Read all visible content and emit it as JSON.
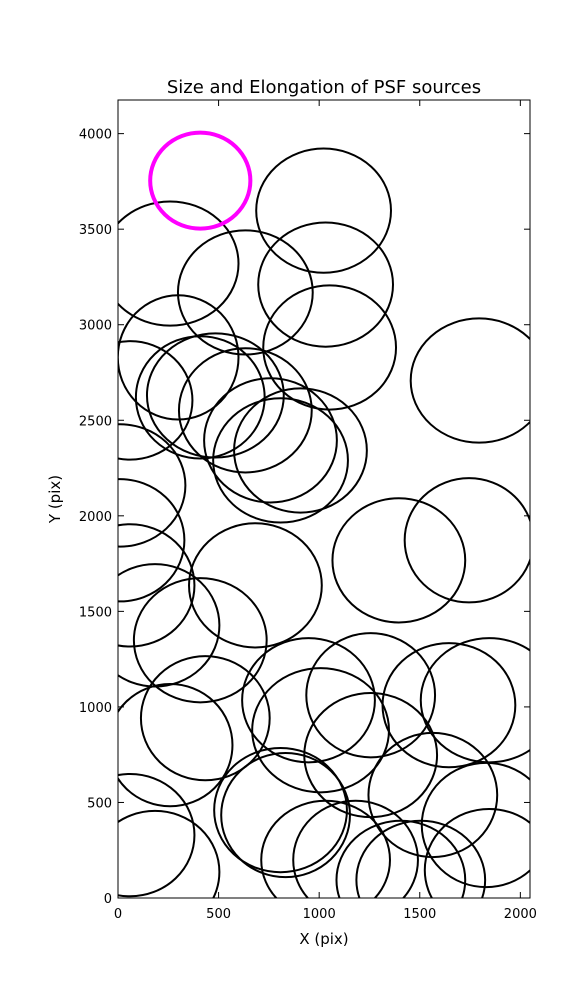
{
  "chart_data": {
    "type": "ellipse",
    "title": "Size and Elongation of PSF sources",
    "xlabel": "X (pix)",
    "ylabel": "Y (pix)",
    "xlim": [
      0,
      2048
    ],
    "ylim": [
      0,
      4176
    ],
    "xticks": [
      0,
      500,
      1000,
      1500,
      2000
    ],
    "yticks": [
      0,
      500,
      1000,
      1500,
      2000,
      2500,
      3000,
      3500,
      4000
    ],
    "series": [
      {
        "color": "#000000",
        "linewidth": 2,
        "x": [
          1022,
          259,
          633,
          1032,
          299,
          1052,
          1795,
          60,
          409,
          484,
          633,
          758,
          907,
          808,
          10,
          10,
          683,
          1396,
          1745,
          60,
          184,
          409,
          947,
          1256,
          1645,
          1845,
          434,
          259,
          1007,
          808,
          833,
          1256,
          1565,
          1830,
          60,
          184,
          1181,
          1406,
          1505,
          1845,
          1032
        ],
        "y": [
          3597,
          3320,
          3169,
          3210,
          2829,
          2881,
          2708,
          2604,
          2620,
          2630,
          2552,
          2395,
          2342,
          2290,
          2159,
          1872,
          1636,
          1767,
          1872,
          1636,
          1427,
          1349,
          1035,
          1061,
          1009,
          1035,
          941,
          800,
          878,
          460,
          434,
          748,
          539,
          382,
          329,
          136,
          199,
          94,
          94,
          146,
          199
        ],
        "width": [
          670,
          680,
          670,
          670,
          600,
          660,
          680,
          620,
          640,
          680,
          660,
          660,
          660,
          670,
          650,
          640,
          660,
          660,
          640,
          640,
          640,
          660,
          660,
          640,
          660,
          680,
          640,
          620,
          680,
          660,
          640,
          660,
          640,
          640,
          640,
          640,
          620,
          640,
          640,
          640,
          640
        ],
        "height": [
          650,
          650,
          650,
          650,
          650,
          650,
          650,
          620,
          640,
          650,
          650,
          650,
          650,
          650,
          640,
          640,
          650,
          650,
          650,
          640,
          640,
          650,
          650,
          650,
          650,
          650,
          650,
          640,
          650,
          650,
          650,
          650,
          650,
          650,
          640,
          640,
          620,
          620,
          620,
          640,
          620
        ]
      },
      {
        "color": "#ff00ff",
        "linewidth": 4,
        "x": [
          409
        ],
        "y": [
          3754
        ],
        "width": [
          498
        ],
        "height": [
          502
        ]
      }
    ]
  }
}
